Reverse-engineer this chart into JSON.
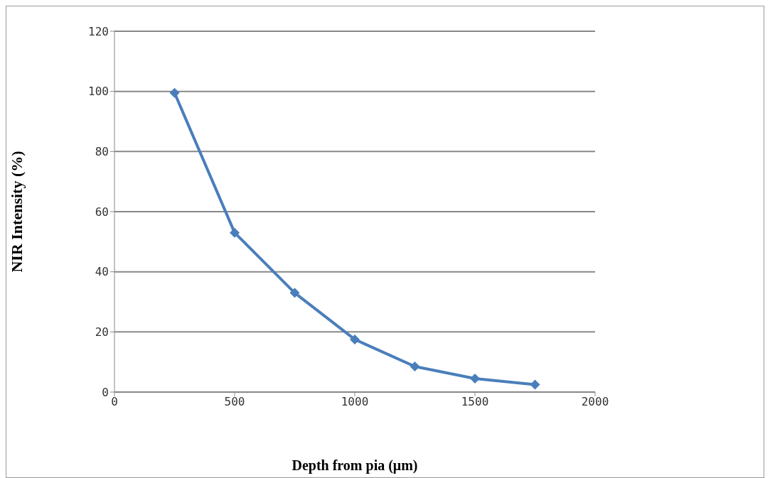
{
  "chart_data": {
    "type": "line",
    "xlabel": "Depth from pia (μm)",
    "ylabel": "NIR Intensity (%)",
    "x": [
      250,
      500,
      750,
      1000,
      1250,
      1500,
      1750
    ],
    "series": [
      {
        "color": "#4a7ebb",
        "values": [
          99.5,
          53,
          33,
          17.5,
          8.5,
          4.5,
          2.5
        ]
      }
    ],
    "xlim": [
      0,
      2000
    ],
    "xticks": [
      0,
      500,
      1000,
      1500,
      2000
    ],
    "ylim": [
      0,
      120
    ],
    "yticks": [
      0,
      20,
      40,
      60,
      80,
      100,
      120
    ],
    "grid": "y",
    "legend": false,
    "marker": "diamond",
    "line_style": "solid"
  }
}
